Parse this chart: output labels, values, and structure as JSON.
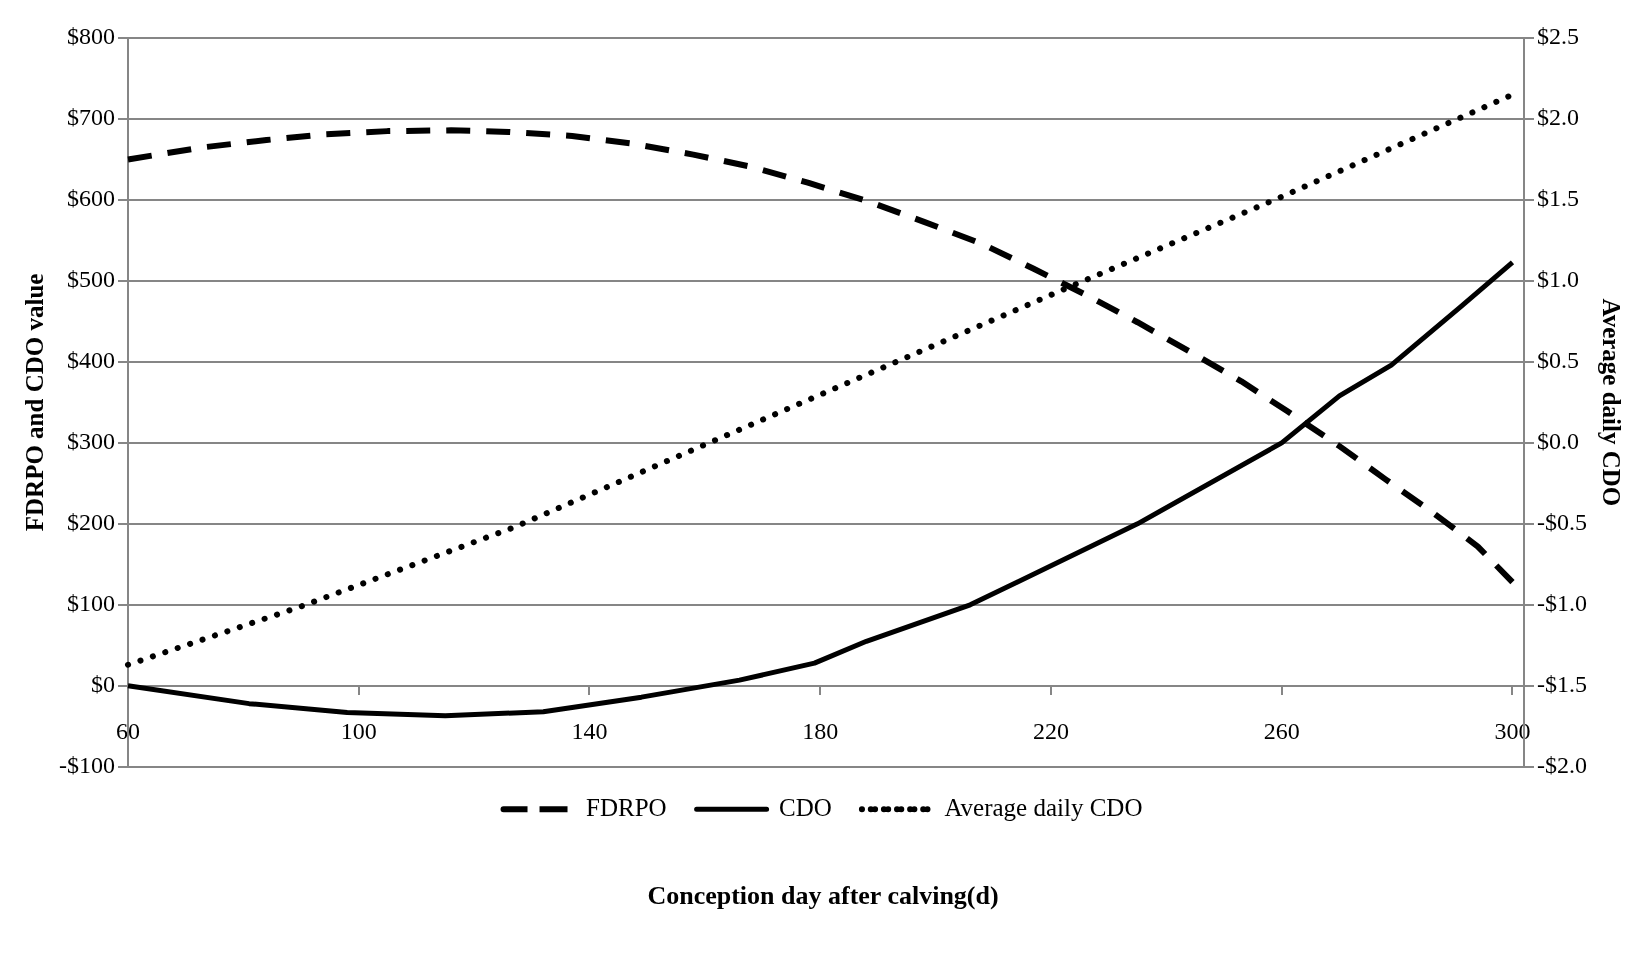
{
  "chart_data": {
    "type": "line",
    "xlabel": "Conception day after calving(d)",
    "ylabel": "FDRPO and CDO value",
    "y2label": "Average daily CDO",
    "xlim": [
      60,
      302
    ],
    "xticks": [
      60,
      100,
      140,
      180,
      220,
      260,
      300
    ],
    "ylim": [
      -100,
      800
    ],
    "yticks": [
      {
        "value": -100,
        "label": "-$100"
      },
      {
        "value": 0,
        "label": "$0"
      },
      {
        "value": 100,
        "label": "$100"
      },
      {
        "value": 200,
        "label": "$200"
      },
      {
        "value": 300,
        "label": "$300"
      },
      {
        "value": 400,
        "label": "$400"
      },
      {
        "value": 500,
        "label": "$500"
      },
      {
        "value": 600,
        "label": "$600"
      },
      {
        "value": 700,
        "label": "$700"
      },
      {
        "value": 800,
        "label": "$800"
      }
    ],
    "y2lim": [
      -2,
      2.5
    ],
    "y2ticks": [
      {
        "value": -2,
        "label": "-$2.0"
      },
      {
        "value": -1.5,
        "label": "-$1.5"
      },
      {
        "value": -1,
        "label": "-$1.0"
      },
      {
        "value": -0.5,
        "label": "-$0.5"
      },
      {
        "value": 0,
        "label": "$0.0"
      },
      {
        "value": 0.5,
        "label": "$0.5"
      },
      {
        "value": 1,
        "label": "$1.0"
      },
      {
        "value": 1.5,
        "label": "$1.5"
      },
      {
        "value": 2,
        "label": "$2.0"
      },
      {
        "value": 2.5,
        "label": "$2.5"
      }
    ],
    "grid": "y",
    "legend": "bottom",
    "marker": "none",
    "series": [
      {
        "name": "FDRPO",
        "color": "#000000",
        "line_style": "dashed",
        "x": [
          60,
          73,
          84,
          94,
          105,
          116,
          126,
          137,
          147,
          158,
          168,
          178,
          188,
          198,
          208,
          217,
          226,
          235,
          244,
          253,
          261,
          270,
          278,
          286,
          294,
          300
        ],
        "values": [
          650,
          665,
          674,
          681,
          685,
          686,
          684,
          679,
          670,
          656,
          641,
          621,
          599,
          573,
          546,
          515,
          483,
          449,
          413,
          376,
          339,
          296,
          255,
          215,
          172,
          128
        ]
      },
      {
        "name": "CDO",
        "color": "#000000",
        "line_style": "solid",
        "x": [
          60,
          81,
          98,
          115,
          132,
          149,
          166,
          179,
          188,
          206,
          235,
          260,
          270,
          279,
          291,
          300
        ],
        "values": [
          0,
          -22,
          -33,
          -37,
          -32,
          -14,
          7,
          28,
          55,
          100,
          200,
          300,
          358,
          396,
          468,
          523
        ]
      },
      {
        "name": "Average daily CDO",
        "color": "#000000",
        "line_style": "dotted",
        "axis": "y2",
        "x": [
          60,
          90,
          127,
          186,
          223,
          260,
          300
        ],
        "values": [
          -1.37,
          -1.01,
          -0.52,
          0.39,
          0.96,
          1.52,
          2.15
        ]
      }
    ]
  }
}
